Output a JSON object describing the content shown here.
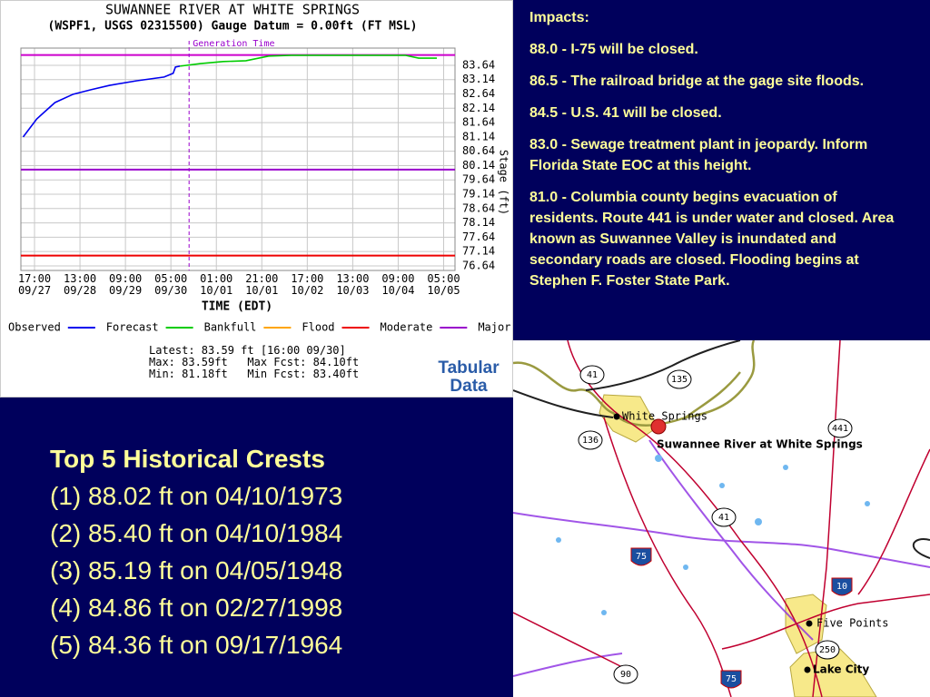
{
  "chart_data": {
    "type": "line",
    "title": "SUWANNEE RIVER AT WHITE SPRINGS",
    "subtitle": "(WSPF1, USGS 02315500) Gauge Datum = 0.00ft (FT MSL)",
    "xlabel": "TIME (EDT)",
    "ylabel": "Stage (ft)",
    "annotation": "Generation Time",
    "generation_time": 68,
    "xlim": [
      -6,
      185
    ],
    "ylim": [
      76.48,
      84.24
    ],
    "xticks": [
      {
        "value": 0,
        "label": "17:00\n09/27"
      },
      {
        "value": 20,
        "label": "13:00\n09/28"
      },
      {
        "value": 40,
        "label": "09:00\n09/29"
      },
      {
        "value": 60,
        "label": "05:00\n09/30"
      },
      {
        "value": 80,
        "label": "01:00\n10/01"
      },
      {
        "value": 100,
        "label": "21:00\n10/01"
      },
      {
        "value": 120,
        "label": "17:00\n10/02"
      },
      {
        "value": 140,
        "label": "13:00\n10/03"
      },
      {
        "value": 160,
        "label": "09:00\n10/04"
      },
      {
        "value": 180,
        "label": "05:00\n10/05"
      }
    ],
    "yticks": [
      76.64,
      77.14,
      77.64,
      78.14,
      78.64,
      79.14,
      79.64,
      80.14,
      80.64,
      81.14,
      81.64,
      82.14,
      82.64,
      83.14,
      83.64
    ],
    "grid": true,
    "legend": "bottom",
    "series": [
      {
        "name": "Observed",
        "color": "#0000ee",
        "x": [
          -5,
          1,
          9,
          17,
          25,
          33,
          45,
          57,
          61,
          62,
          64
        ],
        "values": [
          81.14,
          81.77,
          82.34,
          82.63,
          82.79,
          82.94,
          83.1,
          83.23,
          83.36,
          83.58,
          83.61
        ]
      },
      {
        "name": "Forecast",
        "color": "#00cc00",
        "x": [
          64,
          73,
          83,
          93,
          103,
          113,
          163,
          169,
          177
        ],
        "values": [
          83.61,
          83.7,
          83.77,
          83.8,
          83.96,
          83.99,
          83.99,
          83.89,
          83.89
        ]
      }
    ],
    "thresholds": [
      {
        "name": "Bankfull",
        "color": "#ffa500",
        "value": null
      },
      {
        "name": "Flood",
        "color": "#ee0000",
        "value": 77.0
      },
      {
        "name": "Moderate",
        "color": "#9900cc",
        "value": 80.0
      },
      {
        "name": "Major",
        "color": "#cc00cc",
        "value": 84.0
      }
    ],
    "summary": [
      "Latest: 83.59 ft [16:00 09/30]",
      "Max: 83.59ft   Max Fcst: 84.10ft",
      "Min: 81.18ft   Min Fcst: 83.40ft"
    ]
  },
  "tabular_link": "Tabular Data",
  "impacts": {
    "heading": "Impacts:",
    "items": [
      "88.0 - I-75 will be closed.",
      "86.5 - The railroad bridge at the gage site floods.",
      "84.5 - U.S. 41 will be closed.",
      "83.0 - Sewage treatment plant in jeopardy. Inform Florida State EOC at this height.",
      "81.0 - Columbia county begins evacuation of residents. Route 441 is under water and closed. Area known as Suwannee Valley is inundated and secondary roads are closed. Flooding begins at Stephen F. Foster State Park."
    ]
  },
  "crests": {
    "heading": "Top 5 Historical Crests",
    "items": [
      "(1) 88.02 ft on 04/10/1973",
      "(2) 85.40 ft on 04/10/1984",
      "(3) 85.19 ft on 04/05/1948",
      "(4) 84.86 ft on 02/27/1998",
      "(5) 84.36 ft on 09/17/1964"
    ]
  },
  "map": {
    "places": [
      "White Springs",
      "Suwannee River at White Springs",
      "Five Points",
      "Lake City"
    ],
    "shields": [
      "41",
      "135",
      "441",
      "136",
      "41",
      "75",
      "10",
      "250",
      "90",
      "75"
    ]
  }
}
